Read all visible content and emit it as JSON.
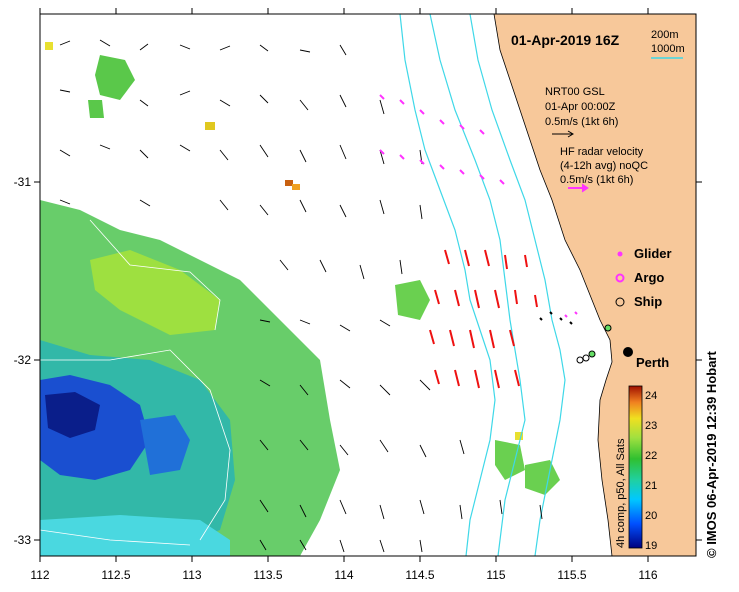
{
  "title": "01-Apr-2019 16Z",
  "depth_legend": [
    "200m",
    "1000m"
  ],
  "nrt": {
    "line1": "NRT00 GSL",
    "line2": "01-Apr 00:00Z",
    "line3": "0.5m/s (1kt 6h)"
  },
  "hf": {
    "line1": "HF radar velocity",
    "line2": "(4-12h avg) noQC",
    "line3": "0.5m/s (1kt 6h)"
  },
  "legend": {
    "glider": "Glider",
    "argo": "Argo",
    "ship": "Ship"
  },
  "city": "Perth",
  "x_ticks": [
    "112",
    "112.5",
    "113",
    "113.5",
    "114",
    "114.5",
    "115",
    "115.5",
    "116"
  ],
  "y_ticks": [
    "-31",
    "-32",
    "-33"
  ],
  "colorbar": {
    "ticks": [
      "24",
      "23",
      "22",
      "21",
      "20",
      "19"
    ],
    "label": "4h comp, p50, All Sats"
  },
  "credit": "© IMOS 06-Apr-2019 12:39 Hobart",
  "colors": {
    "land": "#f7c89a",
    "isobath": "#3fd8e8",
    "glider": "#ff33ff",
    "radar": "#ee1111"
  }
}
